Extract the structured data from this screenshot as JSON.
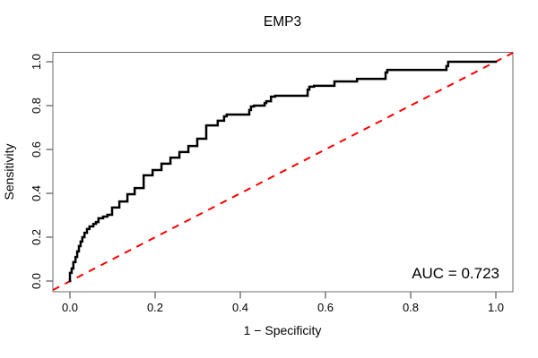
{
  "title": "EMP3",
  "annotation": "AUC = 0.723",
  "colors": {
    "roc_curve": "#000000",
    "diagonal": "#FF0000",
    "box": "#6e6e6e",
    "tick": "#555555",
    "text": "#000000",
    "background": "#FFFFFF"
  },
  "chart_data": {
    "type": "line",
    "subtype": "roc-step-curve",
    "title": "EMP3",
    "xlabel": "1 − Specificity",
    "ylabel": "Sensitivity",
    "annotation": "AUC = 0.723",
    "auc": 0.723,
    "xlim": [
      0,
      1
    ],
    "ylim": [
      0,
      1
    ],
    "x_ticks": [
      0.0,
      0.2,
      0.4,
      0.6,
      0.8,
      1.0
    ],
    "y_ticks": [
      0.0,
      0.2,
      0.4,
      0.6,
      0.8,
      1.0
    ],
    "grid": false,
    "legend": "none",
    "series": [
      {
        "name": "ROC curve",
        "style": "step",
        "color": "#000000",
        "points": [
          [
            0.0,
            0.0
          ],
          [
            0.004,
            0.037
          ],
          [
            0.008,
            0.057
          ],
          [
            0.013,
            0.086
          ],
          [
            0.017,
            0.11
          ],
          [
            0.021,
            0.135
          ],
          [
            0.025,
            0.159
          ],
          [
            0.029,
            0.18
          ],
          [
            0.034,
            0.2
          ],
          [
            0.04,
            0.22
          ],
          [
            0.046,
            0.237
          ],
          [
            0.055,
            0.249
          ],
          [
            0.061,
            0.261
          ],
          [
            0.067,
            0.269
          ],
          [
            0.078,
            0.286
          ],
          [
            0.088,
            0.294
          ],
          [
            0.099,
            0.302
          ],
          [
            0.116,
            0.335
          ],
          [
            0.135,
            0.363
          ],
          [
            0.152,
            0.396
          ],
          [
            0.173,
            0.424
          ],
          [
            0.194,
            0.482
          ],
          [
            0.215,
            0.506
          ],
          [
            0.236,
            0.535
          ],
          [
            0.257,
            0.563
          ],
          [
            0.278,
            0.588
          ],
          [
            0.299,
            0.616
          ],
          [
            0.32,
            0.649
          ],
          [
            0.347,
            0.71
          ],
          [
            0.362,
            0.731
          ],
          [
            0.368,
            0.751
          ],
          [
            0.377,
            0.759
          ],
          [
            0.421,
            0.759
          ],
          [
            0.425,
            0.78
          ],
          [
            0.432,
            0.796
          ],
          [
            0.457,
            0.8
          ],
          [
            0.461,
            0.812
          ],
          [
            0.472,
            0.82
          ],
          [
            0.482,
            0.841
          ],
          [
            0.488,
            0.845
          ],
          [
            0.558,
            0.845
          ],
          [
            0.562,
            0.873
          ],
          [
            0.573,
            0.886
          ],
          [
            0.621,
            0.89
          ],
          [
            0.625,
            0.91
          ],
          [
            0.674,
            0.91
          ],
          [
            0.678,
            0.922
          ],
          [
            0.741,
            0.922
          ],
          [
            0.745,
            0.951
          ],
          [
            0.752,
            0.963
          ],
          [
            0.884,
            0.963
          ],
          [
            0.888,
            0.98
          ],
          [
            0.899,
            1.0
          ],
          [
            1.0,
            1.0
          ]
        ]
      },
      {
        "name": "chance diagonal",
        "style": "dashed",
        "color": "#FF0000",
        "points": [
          [
            0,
            0
          ],
          [
            1,
            1
          ]
        ]
      }
    ]
  }
}
